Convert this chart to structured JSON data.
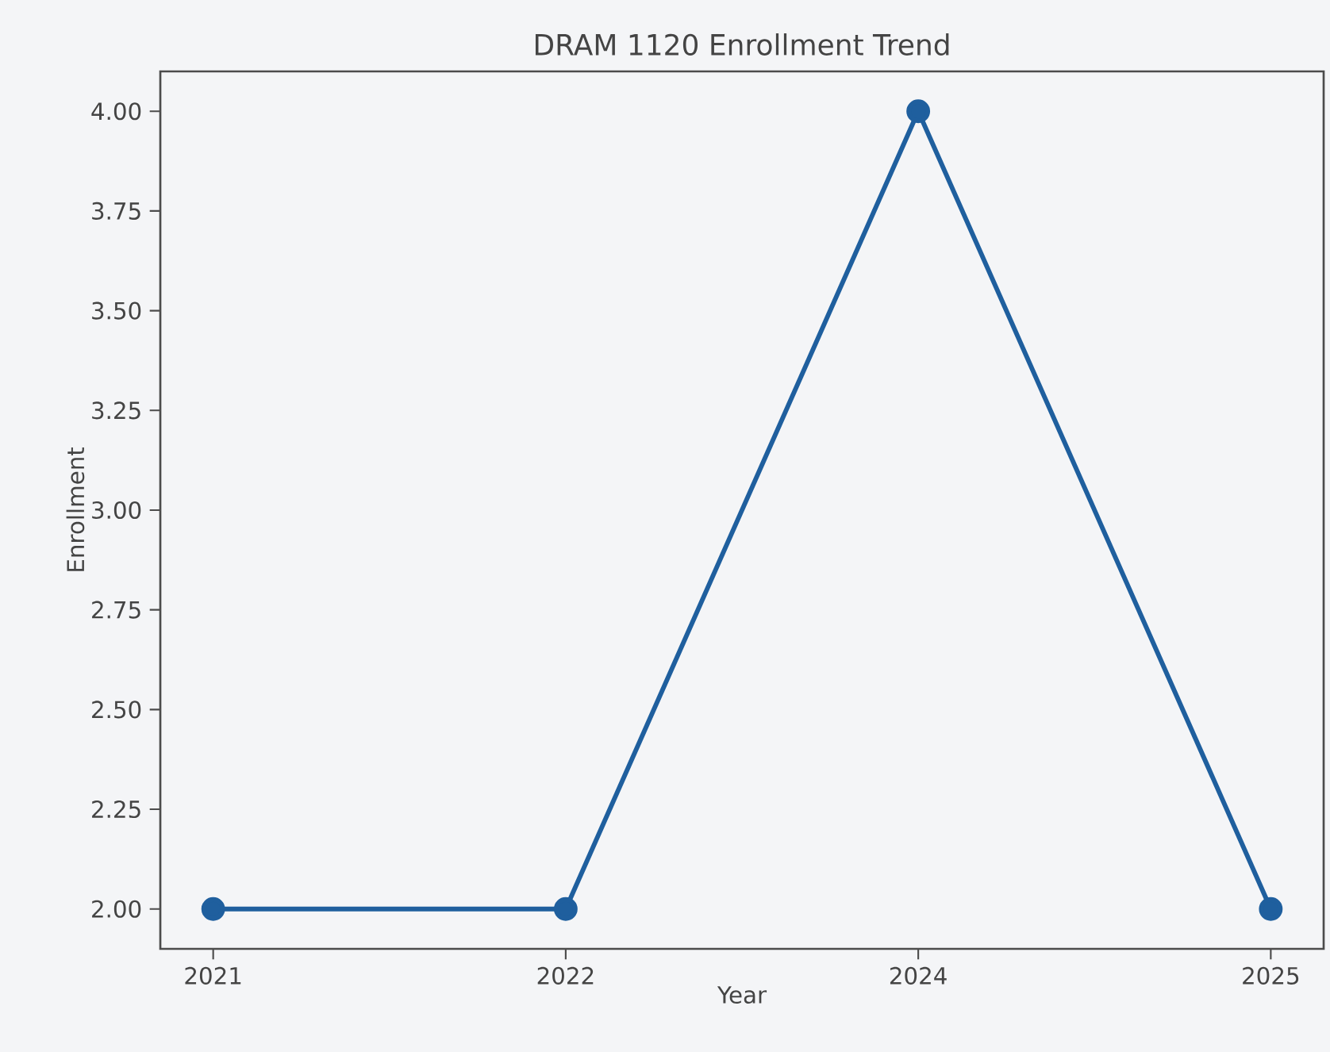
{
  "chart_data": {
    "type": "line",
    "title": "DRAM 1120 Enrollment Trend",
    "xlabel": "Year",
    "ylabel": "Enrollment",
    "categories": [
      "2021",
      "2022",
      "2024",
      "2025"
    ],
    "series": [
      {
        "color": "#1f5f9e",
        "values": [
          2,
          2,
          4,
          2
        ]
      }
    ],
    "ylim": [
      1.9,
      4.1
    ],
    "yticks": [
      {
        "value": 2,
        "label": "2.00"
      },
      {
        "value": 2.25,
        "label": "2.25"
      },
      {
        "value": 2.5,
        "label": "2.50"
      },
      {
        "value": 2.75,
        "label": "2.75"
      },
      {
        "value": 3,
        "label": "3.00"
      },
      {
        "value": 3.25,
        "label": "3.25"
      },
      {
        "value": 3.5,
        "label": "3.50"
      },
      {
        "value": 3.75,
        "label": "3.75"
      },
      {
        "value": 4,
        "label": "4.00"
      }
    ],
    "grid": false,
    "marker": "circle",
    "line_style": "solid"
  }
}
